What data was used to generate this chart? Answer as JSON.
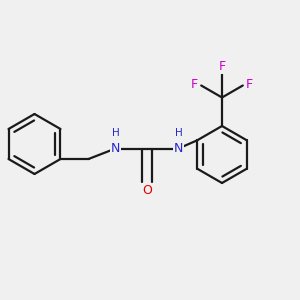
{
  "bg_color": "#f0f0f0",
  "bond_color": "#1a1a1a",
  "N_color": "#2626cc",
  "O_color": "#dd0000",
  "F_color": "#cc00cc",
  "bond_width": 1.6,
  "font_size_atom": 9,
  "font_size_H": 7.5,
  "font_size_F": 9,
  "xlim": [
    0.0,
    1.0
  ],
  "ylim": [
    0.15,
    0.92
  ]
}
